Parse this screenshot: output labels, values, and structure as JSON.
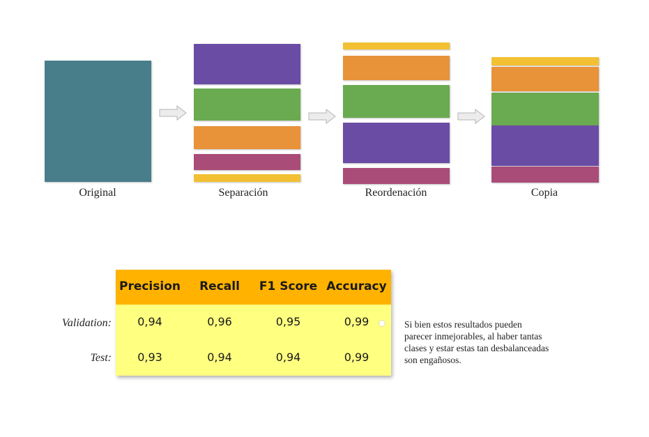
{
  "stages": [
    {
      "label": "Original"
    },
    {
      "label": "Separación"
    },
    {
      "label": "Reordenación"
    },
    {
      "label": "Copia"
    }
  ],
  "colors": {
    "teal": "#487D8A",
    "purple": "#6A4CA5",
    "green": "#6AAA50",
    "orange": "#E8923A",
    "magenta": "#A94C78",
    "yellow": "#F2C032",
    "table_header": "#FFB300",
    "table_body": "#FFFF80"
  },
  "table": {
    "headers": [
      "Precision",
      "Recall",
      "F1 Score",
      "Accuracy"
    ],
    "rows": [
      {
        "label": "Validation:",
        "values": [
          "0,94",
          "0,96",
          "0,95",
          "0,99"
        ]
      },
      {
        "label": "Test:",
        "values": [
          "0,93",
          "0,94",
          "0,94",
          "0,99"
        ]
      }
    ]
  },
  "note": "Si bien estos resultados pueden parecer inmejorables, al haber tantas clases y estar estas tan desbalanceadas son engañosos."
}
